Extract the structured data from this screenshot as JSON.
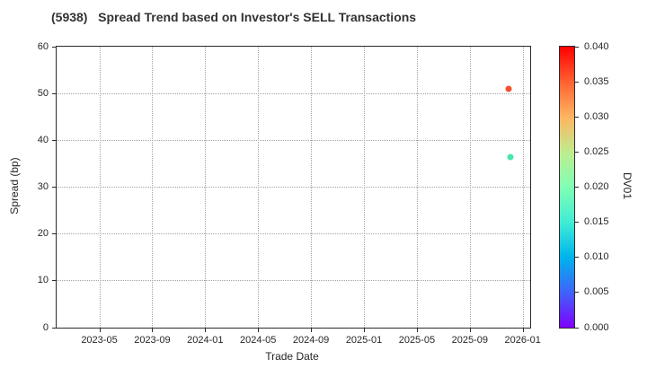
{
  "chart_data": {
    "type": "scatter",
    "title": "(5938)   Spread Trend based on Investor's SELL Transactions",
    "xlabel": "Trade Date",
    "ylabel": "Spread (bp)",
    "ylim": [
      0,
      60
    ],
    "y_ticks": [
      0,
      10,
      20,
      30,
      40,
      50,
      60
    ],
    "x_tick_labels": [
      "2023-05",
      "2023-09",
      "2024-01",
      "2024-05",
      "2024-09",
      "2025-01",
      "2025-05",
      "2025-09",
      "2026-01"
    ],
    "grid": true,
    "grid_style": "dotted",
    "legend_position": "none",
    "points": [
      {
        "date": "2025-11-27",
        "spread_bp": 51.1,
        "dv01": 0.036,
        "color": "#f4502e"
      },
      {
        "date": "2025-12-02",
        "spread_bp": 36.6,
        "dv01": 0.018,
        "color": "#47e7ab"
      }
    ],
    "colorbar": {
      "label": "DV01",
      "min": 0.0,
      "max": 0.04,
      "ticks": [
        "0.000",
        "0.005",
        "0.010",
        "0.015",
        "0.020",
        "0.025",
        "0.030",
        "0.035",
        "0.040"
      ],
      "colormap": "rainbow",
      "stops": [
        {
          "pos": 0.0,
          "color": "#8000ff"
        },
        {
          "pos": 0.125,
          "color": "#4062fa"
        },
        {
          "pos": 0.25,
          "color": "#00b4ec"
        },
        {
          "pos": 0.375,
          "color": "#40ecd4"
        },
        {
          "pos": 0.5,
          "color": "#80ffb4"
        },
        {
          "pos": 0.625,
          "color": "#bfec8e"
        },
        {
          "pos": 0.75,
          "color": "#ffb461"
        },
        {
          "pos": 0.875,
          "color": "#ff6131"
        },
        {
          "pos": 1.0,
          "color": "#ff0000"
        }
      ]
    }
  }
}
